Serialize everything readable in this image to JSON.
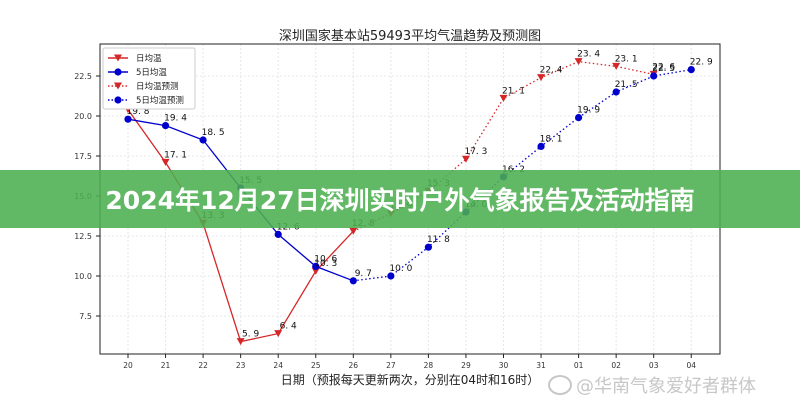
{
  "banner": {
    "title": "2024年12月27日深圳实时户外气象报告及活动指南"
  },
  "watermark": {
    "icon": "weibo-icon",
    "text": "@华南气象爱好者群体"
  },
  "colors": {
    "daily": "#d62728",
    "avg5": "#0000cc",
    "banner": "#4caf50",
    "grid": "#e6e6e6"
  },
  "chart_data": {
    "type": "line",
    "title": "深圳国家基本站59493平均气温趋势及预测图",
    "xlabel": "日期（预报每天更新两次，分别在04时和16时）",
    "ylabel": "",
    "categories": [
      "20",
      "21",
      "22",
      "23",
      "24",
      "25",
      "26",
      "27",
      "28",
      "29",
      "30",
      "31",
      "01",
      "02",
      "03",
      "04"
    ],
    "yticks": [
      7.5,
      10.0,
      12.5,
      15.0,
      17.5,
      20.0,
      22.5
    ],
    "ytick_labels": [
      "7.5",
      "10.0",
      "12.5",
      "15.0",
      "17.5",
      "20.0",
      "22.5"
    ],
    "ylim": [
      4.6,
      24.0
    ],
    "grid": true,
    "legend_position": "upper left",
    "legend": [
      "日均温",
      "5日均温",
      "日均温预测",
      "5日均温预测"
    ],
    "series": [
      {
        "name": "日均温",
        "style": "solid",
        "marker": "triangle-down",
        "color": "#d62728",
        "x": [
          "20",
          "21",
          "22",
          "23",
          "24",
          "25",
          "26"
        ],
        "values": [
          20.4,
          17.1,
          13.3,
          5.9,
          6.4,
          10.3,
          12.8
        ]
      },
      {
        "name": "5日均温",
        "style": "solid",
        "marker": "circle",
        "color": "#0000cc",
        "x": [
          "20",
          "21",
          "22",
          "23",
          "24",
          "25",
          "26"
        ],
        "values": [
          19.8,
          19.4,
          18.5,
          15.5,
          12.6,
          10.6,
          9.7
        ]
      },
      {
        "name": "日均温预测",
        "style": "dotted",
        "marker": "triangle-down",
        "color": "#d62728",
        "x": [
          "26",
          "27",
          "28",
          "29",
          "30",
          "31",
          "01",
          "02",
          "03"
        ],
        "values": [
          12.8,
          13.9,
          15.3,
          17.3,
          21.1,
          22.4,
          23.4,
          23.1,
          22.6
        ]
      },
      {
        "name": "5日均温预测",
        "style": "dotted",
        "marker": "circle",
        "color": "#0000cc",
        "x": [
          "26",
          "27",
          "28",
          "29",
          "30",
          "31",
          "01",
          "02",
          "03",
          "04"
        ],
        "values": [
          9.7,
          10.0,
          11.8,
          14.0,
          16.2,
          18.1,
          19.9,
          21.5,
          22.5,
          22.9
        ]
      }
    ]
  }
}
